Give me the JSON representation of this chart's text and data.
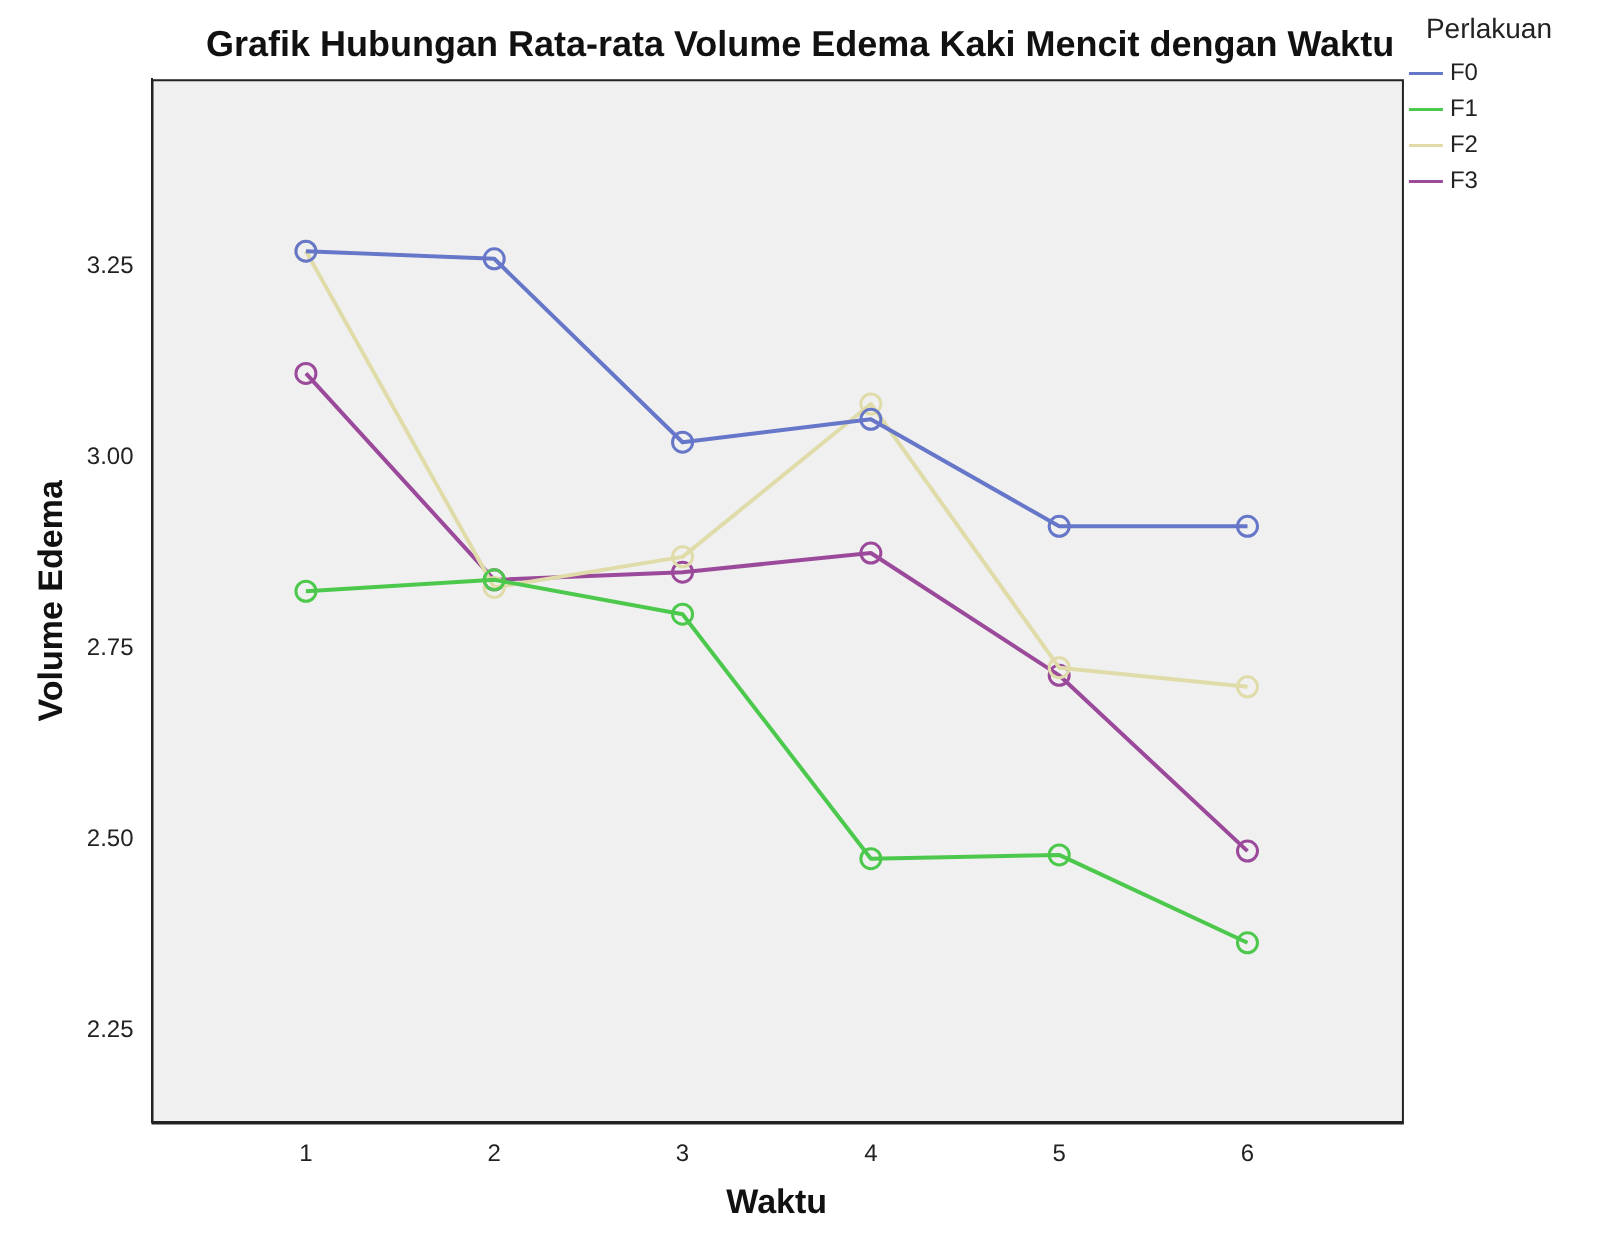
{
  "chart_data": {
    "type": "line",
    "title": "Grafik Hubungan Rata-rata Volume Edema Kaki Mencit dengan Waktu",
    "xlabel": "Waktu",
    "ylabel": "Volume Edema",
    "legend_title": "Perlakuan",
    "x": [
      1,
      2,
      3,
      4,
      5,
      6
    ],
    "series": [
      {
        "name": "F0",
        "color": "#6676c8",
        "values": [
          3.27,
          3.26,
          3.02,
          3.05,
          2.91,
          2.91
        ]
      },
      {
        "name": "F1",
        "color": "#4cc94c",
        "values": [
          2.825,
          2.84,
          2.795,
          2.475,
          2.48,
          2.365
        ]
      },
      {
        "name": "F2",
        "color": "#e0dcaa",
        "values": [
          3.27,
          2.83,
          2.87,
          3.07,
          2.725,
          2.7
        ]
      },
      {
        "name": "F3",
        "color": "#9b4a9b",
        "values": [
          3.11,
          2.84,
          2.85,
          2.875,
          2.715,
          2.485
        ]
      }
    ],
    "xlim": [
      0.18,
      6.82
    ],
    "xticks": [
      1,
      2,
      3,
      4,
      5,
      6
    ],
    "ylim": [
      2.13,
      3.495
    ],
    "yticks": [
      {
        "value": 2.25,
        "label": "2.25"
      },
      {
        "value": 2.5,
        "label": "2.50"
      },
      {
        "value": 2.75,
        "label": "2.75"
      },
      {
        "value": 3,
        "label": "3.00"
      },
      {
        "value": 3.25,
        "label": "3.25"
      }
    ],
    "grid": false,
    "legend": "top right",
    "marker": "circle",
    "line_style": "solid"
  }
}
